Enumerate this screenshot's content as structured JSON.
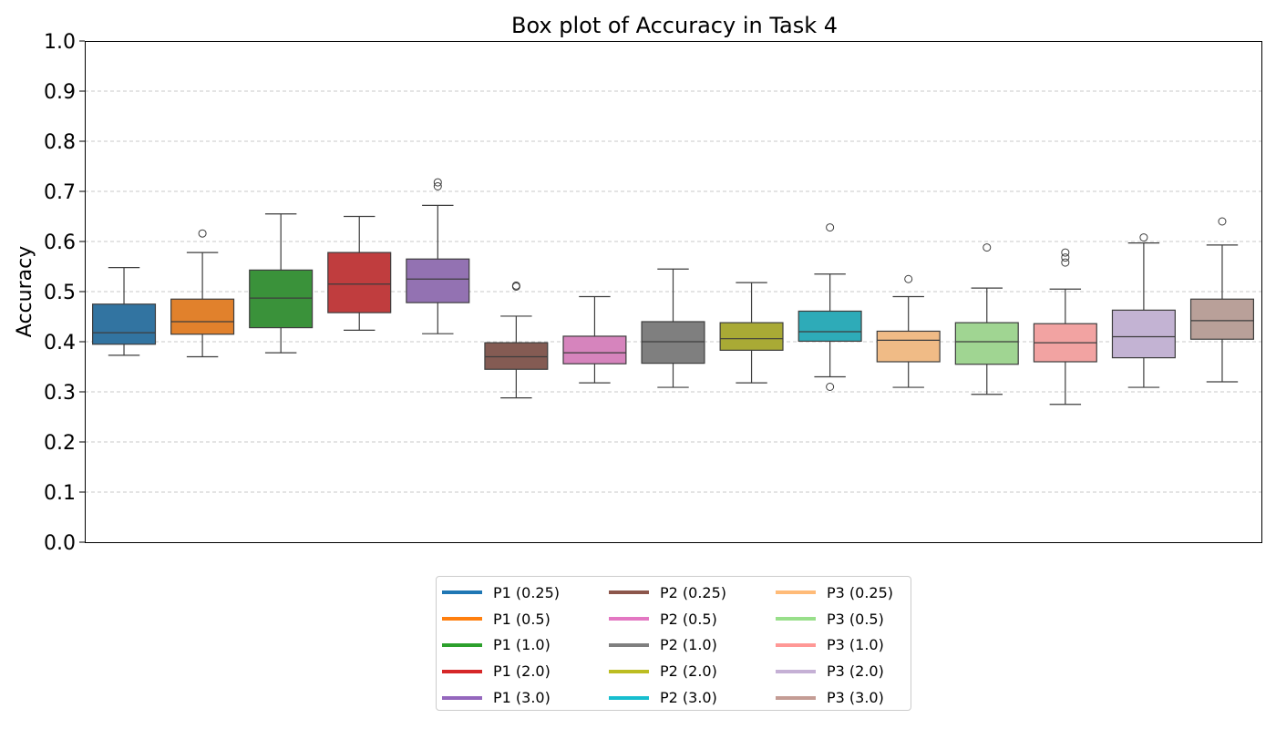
{
  "chart_data": {
    "type": "box",
    "title": "Box plot of Accuracy in Task 4",
    "xlabel": "",
    "ylabel": "Accuracy",
    "ylim": [
      0,
      1.0
    ],
    "yticks": [
      "0.0",
      "0.1",
      "0.2",
      "0.3",
      "0.4",
      "0.5",
      "0.6",
      "0.7",
      "0.8",
      "0.9",
      "1.0"
    ],
    "grid": "horizontal dashed",
    "legend_position": "bottom-center",
    "series": [
      {
        "name": "P1 (0.25)",
        "color": "#1f77b4",
        "box_color": "#3274a1",
        "whisker_low": 0.373,
        "q1": 0.395,
        "median": 0.418,
        "q3": 0.475,
        "whisker_high": 0.548,
        "outliers": []
      },
      {
        "name": "P1 (0.5)",
        "color": "#ff7f0e",
        "box_color": "#e1812c",
        "whisker_low": 0.37,
        "q1": 0.415,
        "median": 0.44,
        "q3": 0.485,
        "whisker_high": 0.578,
        "outliers": [
          0.616
        ]
      },
      {
        "name": "P1 (1.0)",
        "color": "#2ca02c",
        "box_color": "#3a923a",
        "whisker_low": 0.378,
        "q1": 0.428,
        "median": 0.487,
        "q3": 0.543,
        "whisker_high": 0.655,
        "outliers": []
      },
      {
        "name": "P1 (2.0)",
        "color": "#d62728",
        "box_color": "#c03d3e",
        "whisker_low": 0.423,
        "q1": 0.458,
        "median": 0.515,
        "q3": 0.578,
        "whisker_high": 0.65,
        "outliers": []
      },
      {
        "name": "P1 (3.0)",
        "color": "#9467bd",
        "box_color": "#9372b2",
        "whisker_low": 0.416,
        "q1": 0.478,
        "median": 0.525,
        "q3": 0.565,
        "whisker_high": 0.672,
        "outliers": [
          0.71,
          0.718
        ]
      },
      {
        "name": "P2 (0.25)",
        "color": "#8c564b",
        "box_color": "#845b53",
        "whisker_low": 0.288,
        "q1": 0.345,
        "median": 0.37,
        "q3": 0.398,
        "whisker_high": 0.451,
        "outliers": [
          0.51,
          0.512
        ]
      },
      {
        "name": "P2 (0.5)",
        "color": "#e377c2",
        "box_color": "#d684bd",
        "whisker_low": 0.318,
        "q1": 0.356,
        "median": 0.378,
        "q3": 0.411,
        "whisker_high": 0.49,
        "outliers": []
      },
      {
        "name": "P2 (1.0)",
        "color": "#7f7f7f",
        "box_color": "#7f7f7f",
        "whisker_low": 0.309,
        "q1": 0.357,
        "median": 0.4,
        "q3": 0.44,
        "whisker_high": 0.545,
        "outliers": []
      },
      {
        "name": "P2 (2.0)",
        "color": "#bcbd22",
        "box_color": "#a9aa35",
        "whisker_low": 0.318,
        "q1": 0.383,
        "median": 0.406,
        "q3": 0.438,
        "whisker_high": 0.518,
        "outliers": []
      },
      {
        "name": "P2 (3.0)",
        "color": "#17becf",
        "box_color": "#2eabb8",
        "whisker_low": 0.33,
        "q1": 0.401,
        "median": 0.42,
        "q3": 0.461,
        "whisker_high": 0.535,
        "outliers": [
          0.31,
          0.628
        ]
      },
      {
        "name": "P3 (0.25)",
        "color": "#ffbb78",
        "box_color": "#f0bb86",
        "whisker_low": 0.309,
        "q1": 0.36,
        "median": 0.403,
        "q3": 0.421,
        "whisker_high": 0.49,
        "outliers": [
          0.525
        ]
      },
      {
        "name": "P3 (0.5)",
        "color": "#98df8a",
        "box_color": "#a0d592",
        "whisker_low": 0.295,
        "q1": 0.355,
        "median": 0.4,
        "q3": 0.438,
        "whisker_high": 0.507,
        "outliers": [
          0.588
        ]
      },
      {
        "name": "P3 (1.0)",
        "color": "#ff9896",
        "box_color": "#f2a3a2",
        "whisker_low": 0.275,
        "q1": 0.36,
        "median": 0.398,
        "q3": 0.436,
        "whisker_high": 0.505,
        "outliers": [
          0.558,
          0.568,
          0.578
        ]
      },
      {
        "name": "P3 (2.0)",
        "color": "#c5b0d5",
        "box_color": "#c3b3d3",
        "whisker_low": 0.309,
        "q1": 0.368,
        "median": 0.41,
        "q3": 0.463,
        "whisker_high": 0.597,
        "outliers": [
          0.608
        ]
      },
      {
        "name": "P3 (3.0)",
        "color": "#c49c94",
        "box_color": "#b9a099",
        "whisker_low": 0.32,
        "q1": 0.405,
        "median": 0.442,
        "q3": 0.485,
        "whisker_high": 0.593,
        "outliers": [
          0.64
        ]
      }
    ]
  }
}
